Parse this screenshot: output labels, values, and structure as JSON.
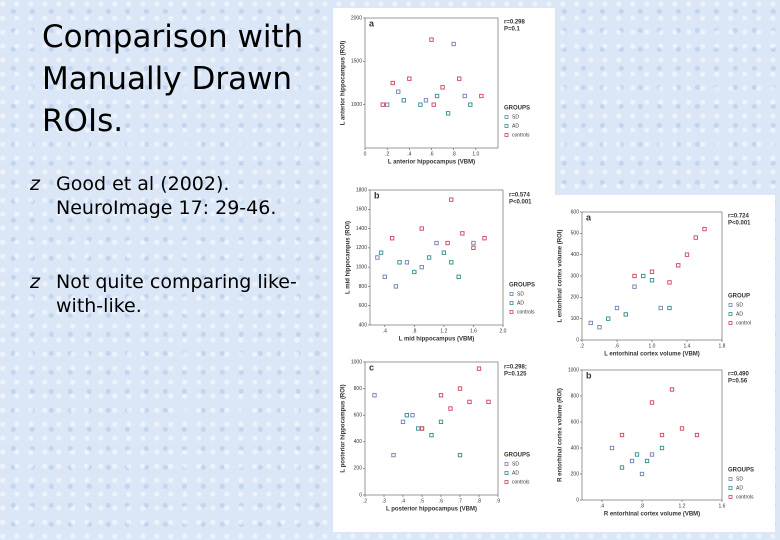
{
  "slide": {
    "title": "Comparison with Manually Drawn ROIs.",
    "bullet_marker": "z",
    "bullets": [
      "Good et al (2002). NeuroImage 17: 29-46.",
      "Not quite comparing like-with-like."
    ]
  },
  "chart_data": [
    {
      "type": "scatter",
      "panel_label": "a",
      "xlabel": "L anterior hippocampus (VBM)",
      "ylabel": "L anterior hippocampus (ROI)",
      "annotations": [
        "r=0.298",
        "P=0.1"
      ],
      "legend_title": "GROUPS",
      "xlim": [
        0,
        1.2
      ],
      "xticks": [
        0,
        {
          "value": 0.2,
          "label": ".2"
        },
        {
          "value": 0.4,
          "label": ".4"
        },
        {
          "value": 0.6,
          "label": ".6"
        },
        {
          "value": 0.8,
          "label": ".8"
        },
        {
          "value": 1,
          "label": "1.0"
        }
      ],
      "ylim": [
        500,
        2000
      ],
      "yticks": [
        1000,
        1500,
        2000
      ],
      "series": [
        {
          "name": "SD",
          "color": "#6d7fb0",
          "x": [
            0.2,
            0.3,
            0.55,
            0.8,
            0.9
          ],
          "values": [
            1000,
            1150,
            1050,
            1700,
            1100
          ]
        },
        {
          "name": "AD",
          "color": "#2f8c8c",
          "x": [
            0.35,
            0.5,
            0.65,
            0.75,
            0.95
          ],
          "values": [
            1050,
            1000,
            1100,
            900,
            1000
          ]
        },
        {
          "name": "controls",
          "color": "#d0405a",
          "x": [
            0.16,
            0.25,
            0.4,
            0.6,
            0.62,
            0.7,
            0.85,
            1.05
          ],
          "values": [
            1000,
            1250,
            1300,
            1750,
            1000,
            1200,
            1300,
            1100
          ]
        }
      ]
    },
    {
      "type": "scatter",
      "panel_label": "b",
      "xlabel": "L mid hippocampus (VBM)",
      "ylabel": "L mid hippocampus (ROI)",
      "annotations": [
        "r=0.574",
        "P<0.001"
      ],
      "legend_title": "GROUPS",
      "xlim": [
        0.2,
        2.0
      ],
      "xticks": [
        {
          "value": 0.4,
          "label": ".4"
        },
        {
          "value": 0.8,
          "label": ".8"
        },
        1.2,
        1.6,
        {
          "value": 2,
          "label": "2.0"
        }
      ],
      "ylim": [
        400,
        1800
      ],
      "yticks": [
        400,
        600,
        800,
        1000,
        1200,
        1400,
        1600,
        1800
      ],
      "series": [
        {
          "name": "SD",
          "color": "#6d7fb0",
          "x": [
            0.3,
            0.4,
            0.55,
            0.7,
            0.9,
            1.1,
            1.6
          ],
          "values": [
            1100,
            900,
            800,
            1050,
            1000,
            1250,
            1250
          ]
        },
        {
          "name": "AD",
          "color": "#2f8c8c",
          "x": [
            0.35,
            0.6,
            0.8,
            1.0,
            1.2,
            1.3,
            1.4
          ],
          "values": [
            1150,
            1050,
            950,
            1100,
            1150,
            1050,
            900
          ]
        },
        {
          "name": "controls",
          "color": "#d0405a",
          "x": [
            0.5,
            0.9,
            1.25,
            1.3,
            1.45,
            1.6,
            1.75
          ],
          "values": [
            1300,
            1400,
            1250,
            1700,
            1350,
            1200,
            1300
          ]
        }
      ]
    },
    {
      "type": "scatter",
      "panel_label": "c",
      "xlabel": "L posterior hippocampus (VBM)",
      "ylabel": "L posterior hippocampus (ROI)",
      "annotations": [
        "r=0.298;",
        "P=0.125"
      ],
      "legend_title": "GROUPS",
      "xlim": [
        0.2,
        0.9
      ],
      "xticks": [
        {
          "value": 0.2,
          "label": ".2"
        },
        {
          "value": 0.3,
          "label": ".3"
        },
        {
          "value": 0.4,
          "label": ".4"
        },
        {
          "value": 0.5,
          "label": ".5"
        },
        {
          "value": 0.6,
          "label": ".6"
        },
        {
          "value": 0.7,
          "label": ".7"
        },
        {
          "value": 0.8,
          "label": ".8"
        },
        {
          "value": 0.9,
          "label": ".9"
        }
      ],
      "ylim": [
        0,
        1000
      ],
      "yticks": [
        0,
        200,
        400,
        600,
        800,
        1000
      ],
      "series": [
        {
          "name": "SD",
          "color": "#6d7fb0",
          "x": [
            0.25,
            0.35,
            0.4,
            0.45,
            0.5
          ],
          "values": [
            750,
            300,
            550,
            600,
            500
          ]
        },
        {
          "name": "AD",
          "color": "#2f8c8c",
          "x": [
            0.42,
            0.48,
            0.55,
            0.6,
            0.7
          ],
          "values": [
            600,
            500,
            450,
            550,
            300
          ]
        },
        {
          "name": "controls",
          "color": "#d0405a",
          "x": [
            0.5,
            0.6,
            0.65,
            0.7,
            0.75,
            0.8,
            0.85
          ],
          "values": [
            500,
            750,
            650,
            800,
            700,
            950,
            700
          ]
        }
      ]
    },
    {
      "type": "scatter",
      "panel_label": "a",
      "xlabel": "L entorhinal cortex volume (VBM)",
      "ylabel": "L entorhinal cortex volume (ROI)",
      "annotations": [
        "r=0.724",
        "P<0.001"
      ],
      "legend_title": "GROUP",
      "xlim": [
        0.2,
        1.8
      ],
      "xticks": [
        {
          "value": 0.2,
          "label": ".2"
        },
        {
          "value": 0.6,
          "label": ".6"
        },
        {
          "value": 1,
          "label": "1.0"
        },
        1.4,
        1.8
      ],
      "ylim": [
        0,
        600
      ],
      "yticks": [
        0,
        100,
        200,
        300,
        400,
        500,
        600
      ],
      "series": [
        {
          "name": "SD",
          "color": "#6d7fb0",
          "x": [
            0.3,
            0.4,
            0.6,
            0.8,
            1.1
          ],
          "values": [
            80,
            60,
            150,
            250,
            150
          ]
        },
        {
          "name": "AD",
          "color": "#2f8c8c",
          "x": [
            0.5,
            0.7,
            0.9,
            1.2,
            1.0
          ],
          "values": [
            100,
            120,
            300,
            150,
            280
          ]
        },
        {
          "name": "control",
          "color": "#d0405a",
          "x": [
            0.8,
            1.0,
            1.2,
            1.3,
            1.4,
            1.5,
            1.6
          ],
          "values": [
            300,
            320,
            270,
            350,
            400,
            480,
            520
          ]
        }
      ]
    },
    {
      "type": "scatter",
      "panel_label": "b",
      "xlabel": "R entorhinal cortex volume (VBM)",
      "ylabel": "R entorhinal cortex volume (ROI)",
      "annotations": [
        "r=0.490",
        "P=0.56"
      ],
      "legend_title": "GROUPS",
      "xlim": [
        0.2,
        1.6
      ],
      "xticks": [
        {
          "value": 0.4,
          "label": ".4"
        },
        {
          "value": 0.8,
          "label": ".8"
        },
        1.2,
        1.6
      ],
      "ylim": [
        0,
        1000
      ],
      "yticks": [
        0,
        200,
        400,
        600,
        800,
        1000
      ],
      "series": [
        {
          "name": "SD",
          "color": "#6d7fb0",
          "x": [
            0.5,
            0.7,
            0.8,
            0.9
          ],
          "values": [
            400,
            300,
            200,
            350
          ]
        },
        {
          "name": "AD",
          "color": "#2f8c8c",
          "x": [
            0.6,
            0.75,
            0.85,
            1.0
          ],
          "values": [
            250,
            350,
            300,
            400
          ]
        },
        {
          "name": "controls",
          "color": "#d0405a",
          "x": [
            0.6,
            0.9,
            1.0,
            1.1,
            1.2,
            1.35
          ],
          "values": [
            500,
            750,
            500,
            850,
            550,
            500
          ]
        }
      ]
    }
  ]
}
